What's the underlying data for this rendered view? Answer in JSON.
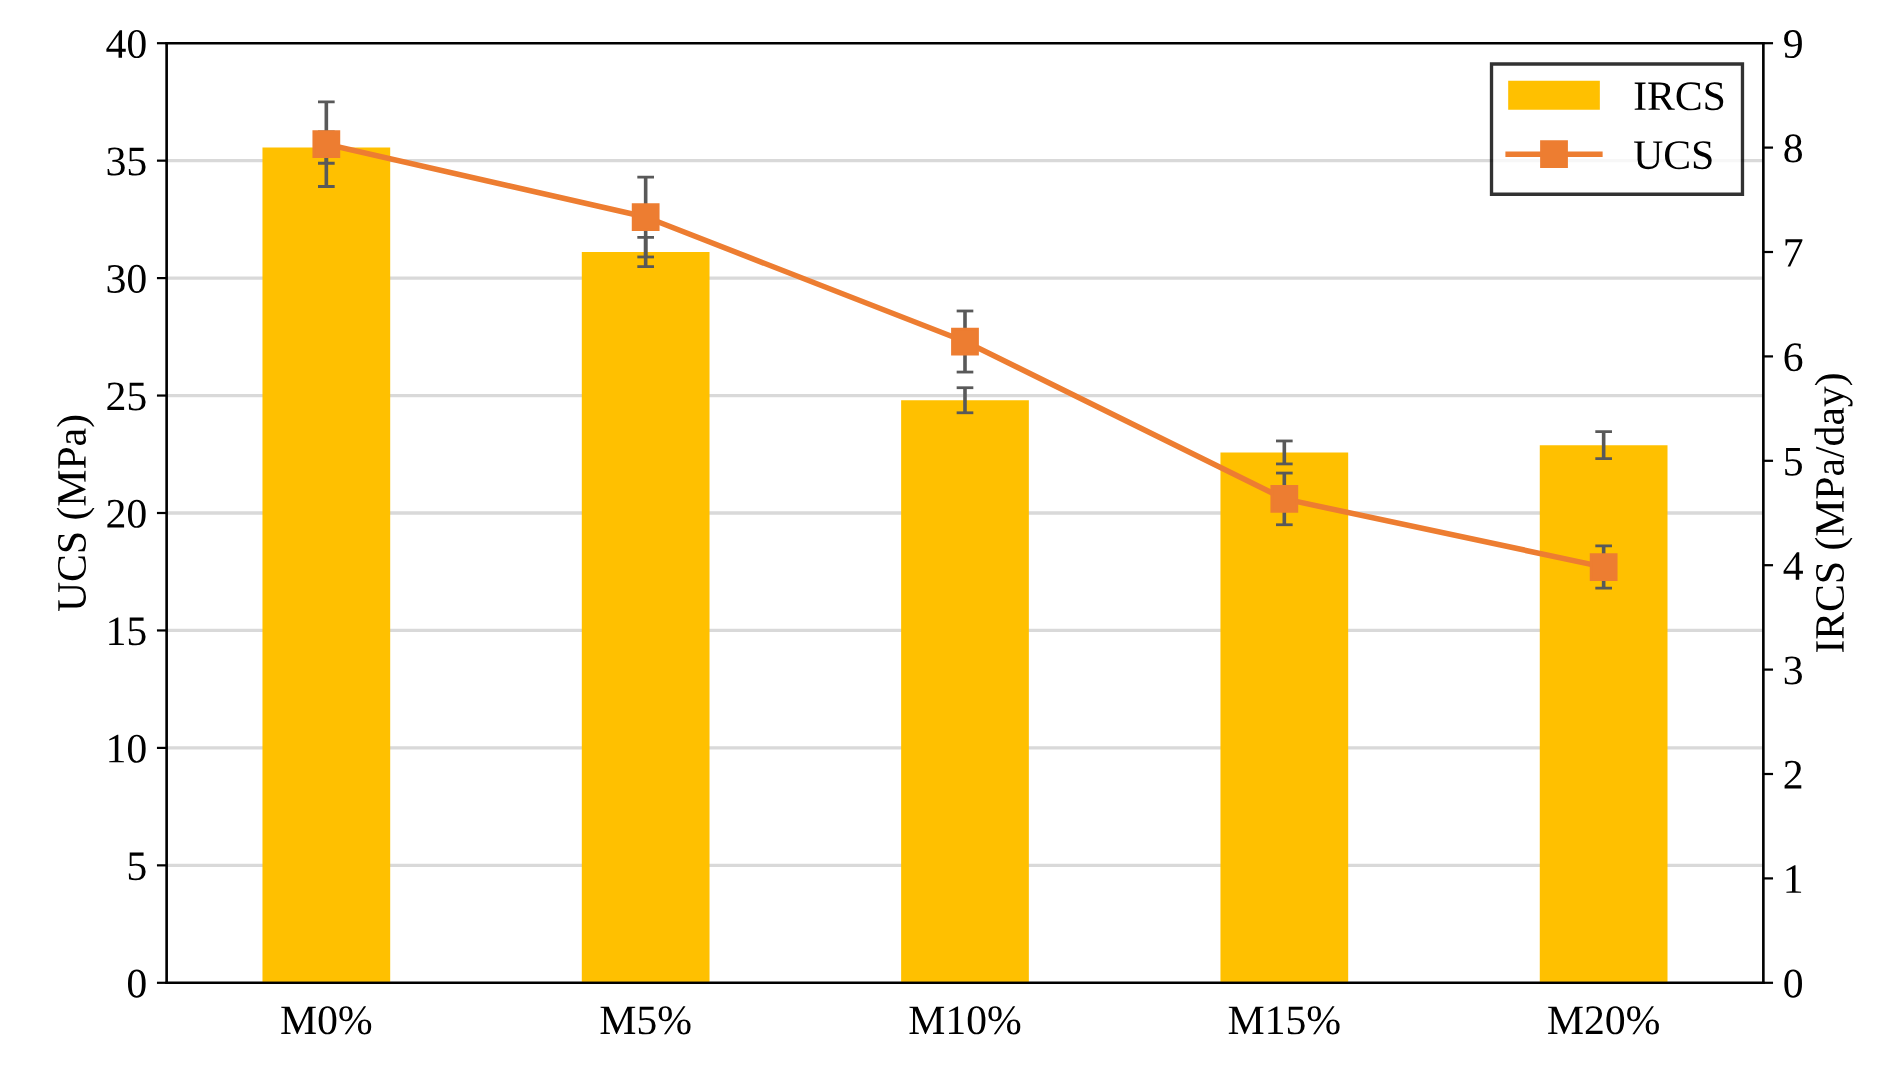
{
  "chart_data": {
    "type": "bar",
    "xlabel": null,
    "ylabel": "UCS (MPa)",
    "y2label": "IRCS (MPa/day)",
    "categories": [
      "M0%",
      "M5%",
      "M10%",
      "M15%",
      "M20%"
    ],
    "series": [
      {
        "name": "IRCS",
        "axis": "y2",
        "color": "#ffc000",
        "values": [
          8.0,
          7.0,
          5.58,
          5.08,
          5.15
        ],
        "errors": [
          0.15,
          0.14,
          0.12,
          0.11,
          0.13
        ]
      },
      {
        "name": "UCS",
        "type": "line",
        "axis": "y",
        "color": "#ed7d31",
        "marker": "square",
        "values": [
          35.7,
          32.6,
          27.3,
          20.6,
          17.7
        ],
        "errors": [
          1.8,
          1.7,
          1.3,
          1.1,
          0.9
        ]
      }
    ],
    "ylim": [
      0,
      40
    ],
    "yticks": [
      0,
      5,
      10,
      15,
      20,
      25,
      30,
      35,
      40
    ],
    "y2lim": [
      0,
      9
    ],
    "y2ticks": [
      0,
      1,
      2,
      3,
      4,
      5,
      6,
      7,
      8,
      9
    ],
    "grid": "y",
    "legend": "top right"
  }
}
